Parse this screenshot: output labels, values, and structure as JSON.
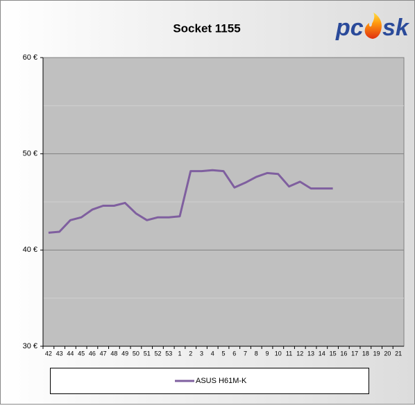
{
  "logo": {
    "left": "pc",
    "right": "sk"
  },
  "chart_data": {
    "type": "line",
    "title": "Socket 1155",
    "categories": [
      "42",
      "43",
      "44",
      "45",
      "46",
      "47",
      "48",
      "49",
      "50",
      "51",
      "52",
      "53",
      "1",
      "2",
      "3",
      "4",
      "5",
      "6",
      "7",
      "8",
      "9",
      "10",
      "11",
      "12",
      "13",
      "14",
      "15",
      "16",
      "17",
      "18",
      "19",
      "20",
      "21"
    ],
    "series": [
      {
        "name": "ASUS H61M-K",
        "color": "#7f5f9f",
        "values": [
          41.8,
          41.9,
          43.1,
          43.4,
          44.2,
          44.6,
          44.6,
          44.9,
          43.8,
          43.1,
          43.4,
          43.4,
          43.5,
          48.2,
          48.2,
          48.3,
          48.2,
          46.5,
          47.0,
          47.6,
          48.0,
          47.9,
          46.6,
          47.1,
          46.4,
          46.4,
          46.4,
          null,
          null,
          null,
          null,
          null,
          null
        ]
      }
    ],
    "ylim": [
      30,
      60
    ],
    "yticks": [
      {
        "value": 30,
        "label": "30 €"
      },
      {
        "value": 40,
        "label": "40 €"
      },
      {
        "value": 50,
        "label": "50 €"
      },
      {
        "value": 60,
        "label": "60 €"
      }
    ],
    "minor_yticks": [
      35,
      45,
      55
    ],
    "grid": true,
    "plot_background": "#c0c0c0",
    "legend": "bottom"
  }
}
